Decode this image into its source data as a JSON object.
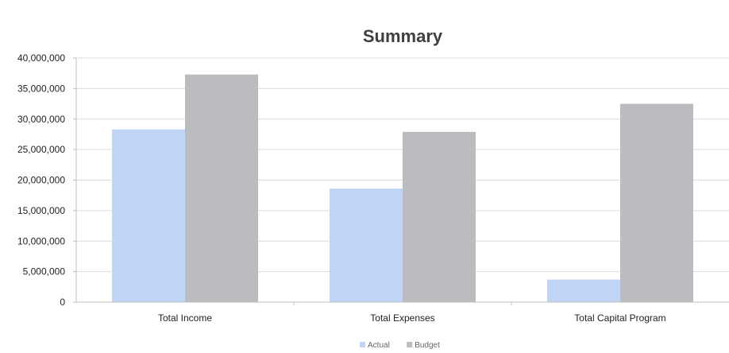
{
  "chart_data": {
    "type": "bar",
    "title": "Summary",
    "xlabel": "",
    "ylabel": "",
    "categories": [
      "Total Income",
      "Total Expenses",
      "Total Capital Program"
    ],
    "series": [
      {
        "name": "Actual",
        "color": "#c0d5f6",
        "values": [
          28300000,
          18600000,
          3700000
        ]
      },
      {
        "name": "Budget",
        "color": "#bbbcc0",
        "values": [
          37300000,
          27900000,
          32500000
        ]
      }
    ],
    "ylim": [
      0,
      40000000
    ],
    "yticks": [
      0,
      5000000,
      10000000,
      15000000,
      20000000,
      25000000,
      30000000,
      35000000,
      40000000
    ],
    "ytick_labels": [
      "0",
      "5,000,000",
      "10,000,000",
      "15,000,000",
      "20,000,000",
      "25,000,000",
      "30,000,000",
      "35,000,000",
      "40,000,000"
    ],
    "grid": true,
    "legend_position": "bottom",
    "colors": {
      "grid": "#dcdcdc",
      "axis": "#bfbfbf"
    }
  }
}
